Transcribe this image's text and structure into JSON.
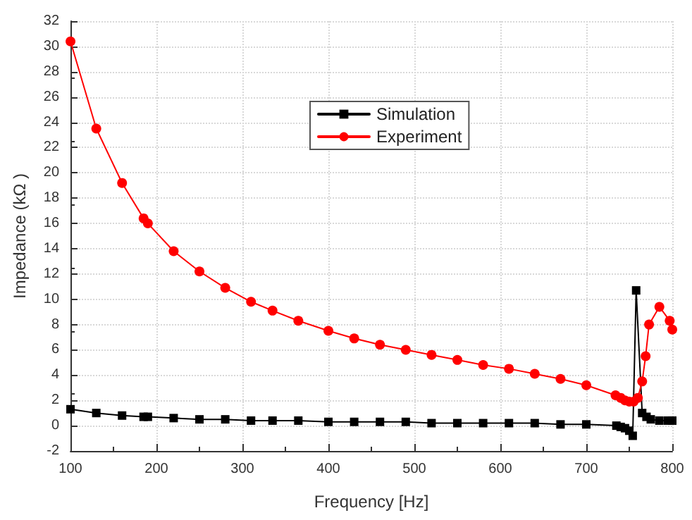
{
  "chart_data": {
    "type": "line",
    "xlabel": "Frequency [Hz]",
    "ylabel": "Impedance (kΩ )",
    "xlim": [
      100,
      800
    ],
    "xticks": [
      100,
      200,
      300,
      400,
      500,
      600,
      700,
      800
    ],
    "ylim": [
      -2,
      32
    ],
    "yticks": [
      -2,
      0,
      2,
      4,
      6,
      8,
      10,
      12,
      14,
      16,
      18,
      20,
      22,
      24,
      26,
      28,
      30,
      32
    ],
    "grid": true,
    "legend": "top",
    "line_style": "solid",
    "series": [
      {
        "name": "Simulation",
        "color": "#000000",
        "marker": "square",
        "x": [
          100,
          130,
          160,
          185,
          190,
          220,
          250,
          280,
          310,
          335,
          365,
          400,
          430,
          460,
          490,
          520,
          550,
          580,
          610,
          640,
          670,
          700,
          735,
          740,
          745,
          750,
          754,
          758,
          765,
          770,
          775,
          785,
          795,
          800
        ],
        "values": [
          1.3,
          1.0,
          0.8,
          0.7,
          0.7,
          0.6,
          0.5,
          0.5,
          0.4,
          0.4,
          0.4,
          0.3,
          0.3,
          0.3,
          0.3,
          0.2,
          0.2,
          0.2,
          0.2,
          0.2,
          0.1,
          0.1,
          0.0,
          -0.1,
          -0.2,
          -0.4,
          -0.8,
          10.7,
          1.0,
          0.7,
          0.5,
          0.4,
          0.4,
          0.4
        ]
      },
      {
        "name": "Experiment",
        "color": "#ff0000",
        "marker": "circle",
        "x": [
          100,
          130,
          160,
          185,
          190,
          220,
          250,
          280,
          310,
          335,
          365,
          400,
          430,
          460,
          490,
          520,
          550,
          580,
          610,
          640,
          670,
          700,
          734,
          740,
          745,
          750,
          755,
          760,
          765,
          769,
          773,
          785,
          797,
          800
        ],
        "values": [
          30.4,
          23.5,
          19.2,
          16.4,
          16.0,
          13.8,
          12.2,
          10.9,
          9.8,
          9.1,
          8.3,
          7.5,
          6.9,
          6.4,
          6.0,
          5.6,
          5.2,
          4.8,
          4.5,
          4.1,
          3.7,
          3.2,
          2.4,
          2.2,
          2.0,
          1.9,
          1.9,
          2.2,
          3.5,
          5.5,
          8.0,
          9.4,
          8.3,
          7.6
        ]
      }
    ]
  }
}
